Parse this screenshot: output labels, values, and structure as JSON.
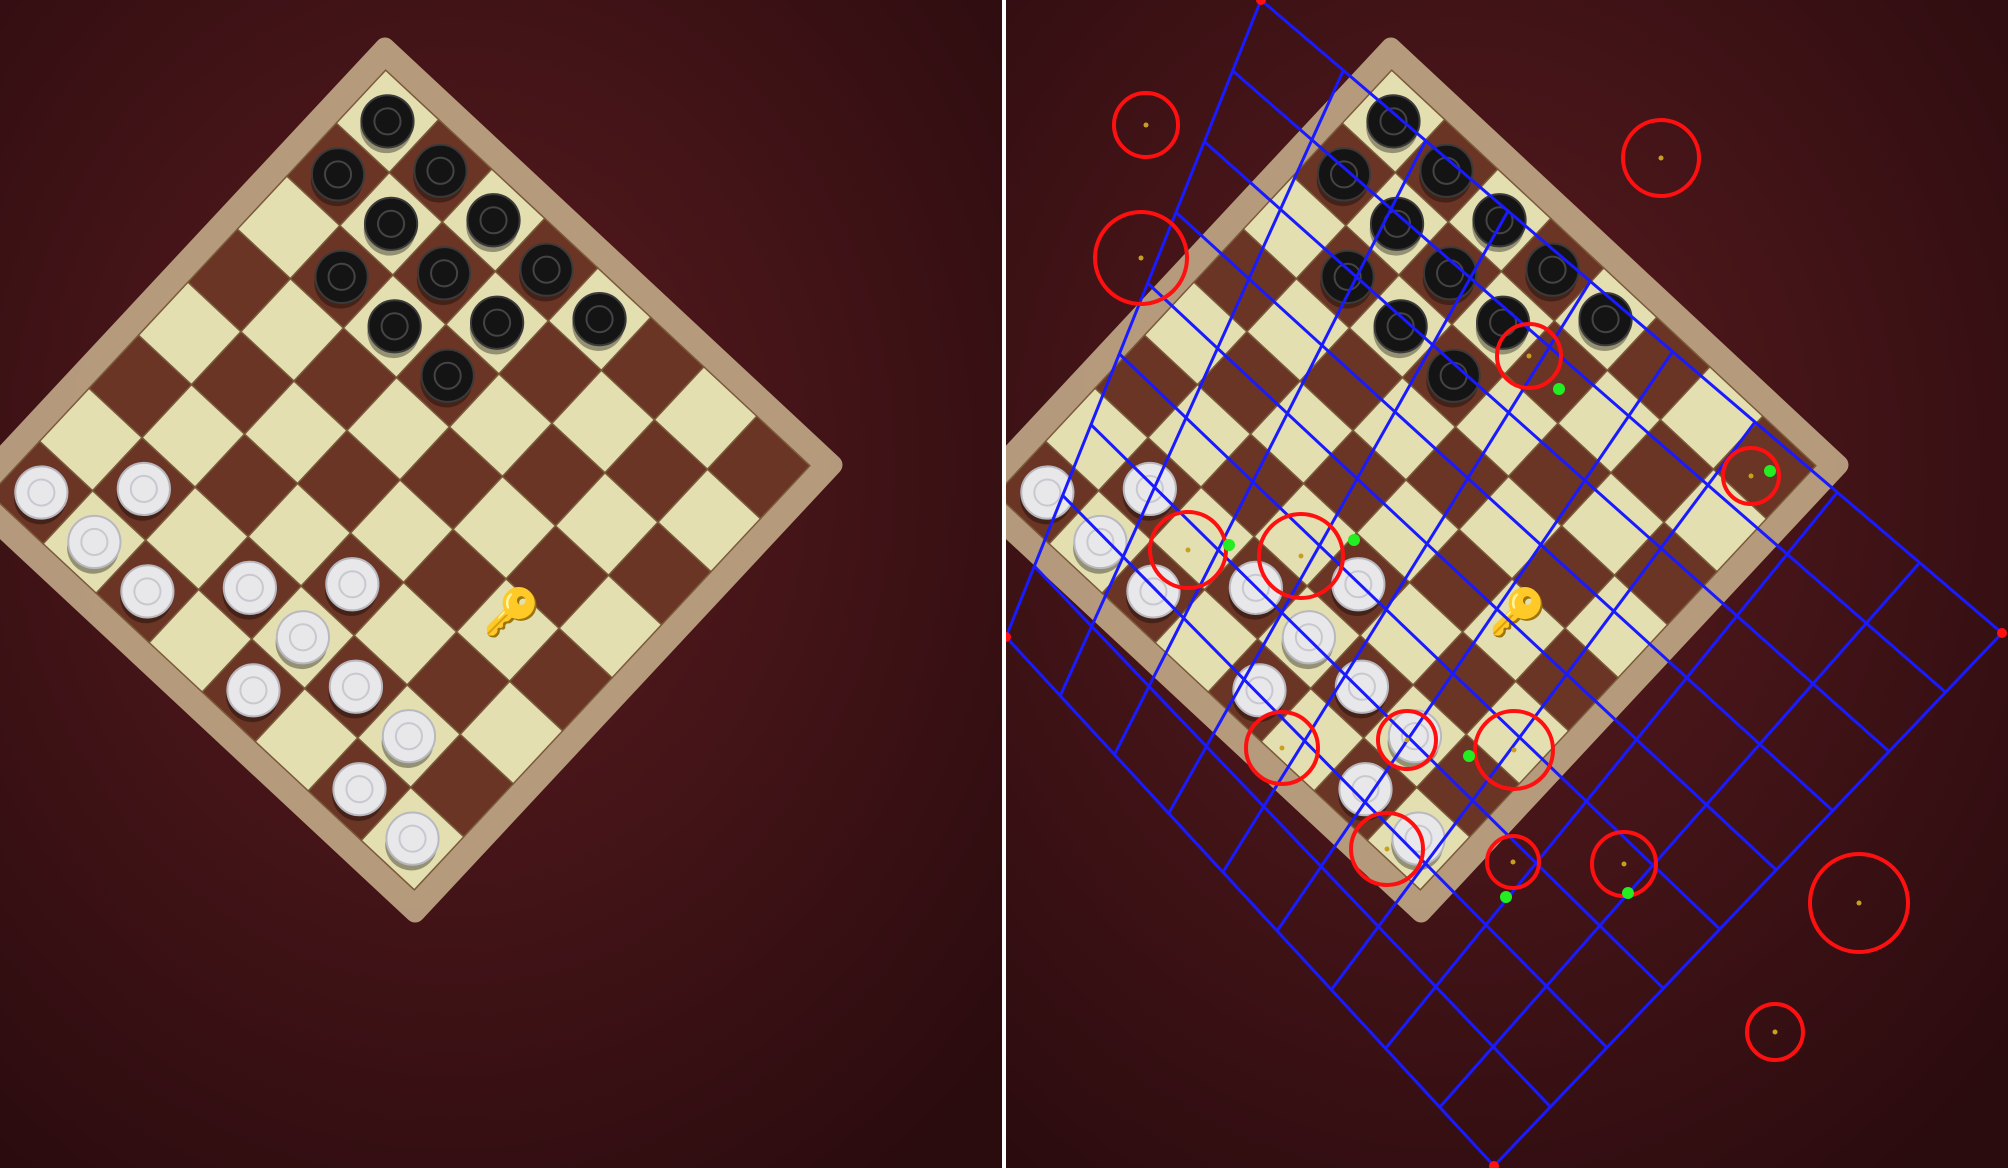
{
  "scene": {
    "description_free": true,
    "table_color": "#3a1114",
    "board_frame_color": "#c9b28e",
    "light_square_color": "#e3dfb0",
    "dark_square_color": "#6a3525",
    "white_piece_color": "#e8e8ea",
    "black_piece_color": "#141414",
    "key_icon": "key-icon"
  },
  "left_view": {
    "white_pieces": [
      [
        7,
        0
      ],
      [
        6,
        1
      ],
      [
        7,
        1
      ],
      [
        7,
        2
      ],
      [
        6,
        3
      ],
      [
        6,
        4
      ],
      [
        7,
        4
      ],
      [
        5,
        4
      ],
      [
        6,
        5
      ],
      [
        7,
        6
      ],
      [
        6,
        6
      ],
      [
        7,
        7
      ]
    ],
    "black_pieces": [
      [
        0,
        0
      ],
      [
        1,
        0
      ],
      [
        0,
        1
      ],
      [
        1,
        1
      ],
      [
        2,
        1
      ],
      [
        0,
        2
      ],
      [
        1,
        2
      ],
      [
        2,
        2
      ],
      [
        0,
        3
      ],
      [
        1,
        3
      ],
      [
        2,
        3
      ],
      [
        0,
        4
      ]
    ]
  },
  "right_view": {
    "overlay_grid_color": "#1a1aff",
    "circle_color": "#ff1010",
    "marker_color": "#22ee22",
    "grid_divisions": 9
  }
}
